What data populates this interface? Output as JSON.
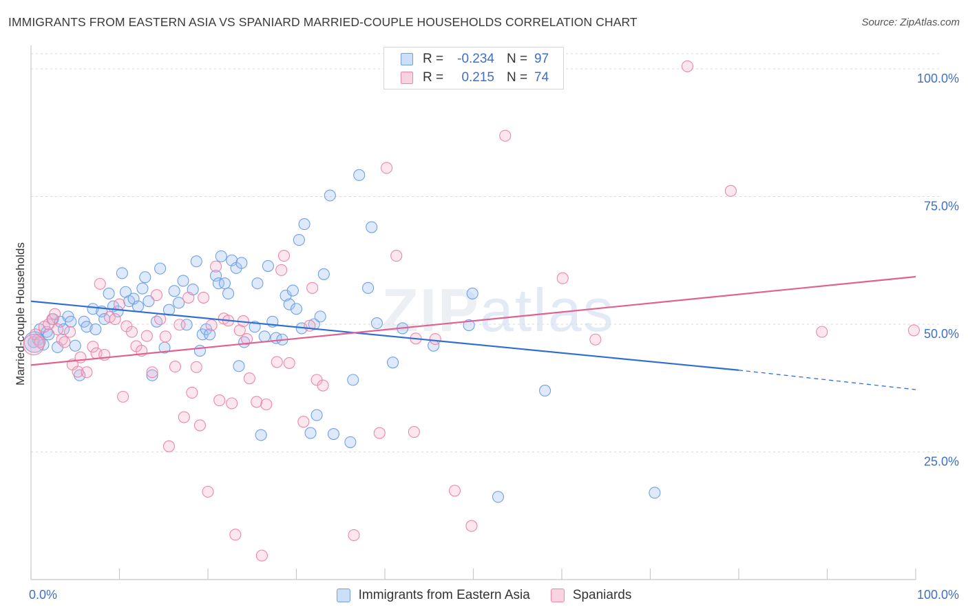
{
  "title": "IMMIGRANTS FROM EASTERN ASIA VS SPANIARD MARRIED-COUPLE HOUSEHOLDS CORRELATION CHART",
  "source": "Source: ZipAtlas.com",
  "watermark": {
    "part1": "ZIP",
    "part2": "atlas"
  },
  "stats": [
    {
      "r_label": "R =",
      "r_value": "-0.234",
      "n_label": "N =",
      "n_value": "97",
      "color": "#6f9fe8"
    },
    {
      "r_label": "R =",
      "r_value": "0.215",
      "n_label": "N =",
      "n_value": "74",
      "color": "#ee86a8"
    }
  ],
  "legend": [
    {
      "label": "Immigrants from Eastern Asia",
      "color": "#6f9fe8"
    },
    {
      "label": "Spaniards",
      "color": "#ee86a8"
    }
  ],
  "chart_data": {
    "type": "scatter",
    "ylabel": "Married-couple Households",
    "xlim": [
      0,
      100
    ],
    "ylim": [
      0,
      100
    ],
    "x_tick_labels": [
      "0.0%",
      "100.0%"
    ],
    "y_ticks": [
      {
        "value": 25,
        "label": "25.0%"
      },
      {
        "value": 50,
        "label": "50.0%"
      },
      {
        "value": 75,
        "label": "75.0%"
      },
      {
        "value": 100,
        "label": "100.0%"
      }
    ],
    "grid": true,
    "legend_position": "bottom",
    "series": [
      {
        "name": "Immigrants from Eastern Asia",
        "color": "#6f9fe8",
        "fill": "rgba(160,195,245,0.35)",
        "trend": {
          "x0": 0,
          "y0": 54.5,
          "x1": 80,
          "y1": 41.0,
          "x_dash_end": 100,
          "y_dash_end": 37.2,
          "color": "#2f6fd1"
        },
        "points": [
          [
            0.3,
            46.5
          ],
          [
            0.8,
            47
          ],
          [
            1,
            49
          ],
          [
            1.4,
            46
          ],
          [
            1.8,
            48.5
          ],
          [
            2,
            48
          ],
          [
            2.5,
            51
          ],
          [
            3,
            45.5
          ],
          [
            3.3,
            50.5
          ],
          [
            3.7,
            49
          ],
          [
            4.2,
            51.5
          ],
          [
            4.5,
            50.5
          ],
          [
            5,
            45.8
          ],
          [
            5.5,
            40
          ],
          [
            6,
            50.5
          ],
          [
            6.3,
            49.5
          ],
          [
            7,
            53
          ],
          [
            7.3,
            49
          ],
          [
            8,
            52.5
          ],
          [
            8.3,
            51
          ],
          [
            8.8,
            56
          ],
          [
            9.3,
            53.5
          ],
          [
            9.8,
            52.5
          ],
          [
            10.3,
            60
          ],
          [
            10.7,
            56.3
          ],
          [
            11.1,
            54.5
          ],
          [
            11.6,
            55
          ],
          [
            12.1,
            53.5
          ],
          [
            12.6,
            57
          ],
          [
            12.9,
            59.2
          ],
          [
            13.3,
            54.5
          ],
          [
            13.7,
            40
          ],
          [
            14.2,
            50.5
          ],
          [
            14.6,
            60.9
          ],
          [
            15.1,
            45.4
          ],
          [
            15.6,
            52.8
          ],
          [
            16.2,
            56.5
          ],
          [
            16.7,
            54.2
          ],
          [
            17.2,
            58.5
          ],
          [
            17.6,
            49.9
          ],
          [
            18.3,
            56.8
          ],
          [
            18.7,
            62.3
          ],
          [
            19.1,
            44.8
          ],
          [
            19.4,
            48
          ],
          [
            19.8,
            49
          ],
          [
            20.2,
            48
          ],
          [
            20.9,
            59.5
          ],
          [
            21.2,
            58
          ],
          [
            21.5,
            63.3
          ],
          [
            21.9,
            58
          ],
          [
            22.3,
            56
          ],
          [
            22.7,
            62.5
          ],
          [
            23.2,
            61
          ],
          [
            23.5,
            41.8
          ],
          [
            23.8,
            62
          ],
          [
            24.1,
            46.5
          ],
          [
            25.3,
            49.5
          ],
          [
            25.6,
            58
          ],
          [
            26,
            28.3
          ],
          [
            26.4,
            47.6
          ],
          [
            26.8,
            61.4
          ],
          [
            27.3,
            50.5
          ],
          [
            27.7,
            47.3
          ],
          [
            28.4,
            47
          ],
          [
            28.8,
            55.6
          ],
          [
            29.2,
            53.9
          ],
          [
            29.6,
            56.6
          ],
          [
            30,
            53
          ],
          [
            30.3,
            66.5
          ],
          [
            30.6,
            49.2
          ],
          [
            30.9,
            69.6
          ],
          [
            31.6,
            28.7
          ],
          [
            32,
            50
          ],
          [
            32.3,
            32.2
          ],
          [
            32.7,
            51.5
          ],
          [
            33.1,
            59.8
          ],
          [
            33.8,
            75.2
          ],
          [
            34.2,
            28.5
          ],
          [
            36.1,
            26.9
          ],
          [
            36.4,
            39.1
          ],
          [
            37.1,
            79.2
          ],
          [
            38.1,
            57.1
          ],
          [
            38.5,
            69
          ],
          [
            39.1,
            50.2
          ],
          [
            40.9,
            42.5
          ],
          [
            42,
            49.2
          ],
          [
            45.5,
            45.8
          ],
          [
            49.5,
            49.8
          ],
          [
            49.9,
            56
          ],
          [
            52.8,
            16.2
          ],
          [
            58.1,
            37
          ],
          [
            70.5,
            17
          ]
        ],
        "big_points": [
          [
            0.4,
            46.5
          ]
        ]
      },
      {
        "name": "Spaniards",
        "color": "#ee86a8",
        "fill": "rgba(245,175,200,0.30)",
        "trend": {
          "x0": 0,
          "y0": 42,
          "x1": 100,
          "y1": 59.3,
          "color": "#e0608e"
        },
        "points": [
          [
            0.5,
            48
          ],
          [
            1,
            46.5
          ],
          [
            1.5,
            49.5
          ],
          [
            2,
            50
          ],
          [
            2.4,
            51
          ],
          [
            2.7,
            52
          ],
          [
            3,
            49
          ],
          [
            3.5,
            47
          ],
          [
            3.8,
            46.5
          ],
          [
            4.4,
            48.5
          ],
          [
            4.7,
            42.1
          ],
          [
            5.3,
            40.7
          ],
          [
            5.6,
            43.5
          ],
          [
            6.3,
            40.6
          ],
          [
            7,
            45.6
          ],
          [
            7.4,
            44.3
          ],
          [
            7.8,
            57.9
          ],
          [
            8.3,
            44
          ],
          [
            8.9,
            51.4
          ],
          [
            9.5,
            51
          ],
          [
            10,
            53.9
          ],
          [
            10.4,
            35.8
          ],
          [
            10.8,
            49.6
          ],
          [
            11.4,
            48.5
          ],
          [
            11.9,
            45.7
          ],
          [
            12.5,
            44.8
          ],
          [
            13.1,
            47.7
          ],
          [
            13.7,
            40.6
          ],
          [
            14.2,
            55.7
          ],
          [
            14.6,
            51
          ],
          [
            15.2,
            47.6
          ],
          [
            15.6,
            26.1
          ],
          [
            16.3,
            41.7
          ],
          [
            16.8,
            49.9
          ],
          [
            17.3,
            31.8
          ],
          [
            17.8,
            55.2
          ],
          [
            18.2,
            36.6
          ],
          [
            18.7,
            41.6
          ],
          [
            19.1,
            30.2
          ],
          [
            19.5,
            55.2
          ],
          [
            20,
            17.2
          ],
          [
            20.4,
            49.8
          ],
          [
            20.9,
            61.3
          ],
          [
            21.3,
            35.1
          ],
          [
            21.8,
            51.1
          ],
          [
            22.3,
            50.7
          ],
          [
            22.7,
            34.5
          ],
          [
            23.1,
            8.8
          ],
          [
            23.6,
            48.8
          ],
          [
            24,
            50.6
          ],
          [
            24.4,
            47.1
          ],
          [
            24.7,
            39.4
          ],
          [
            25.5,
            34.8
          ],
          [
            26.1,
            4.7
          ],
          [
            26.6,
            34.3
          ],
          [
            27.8,
            42.6
          ],
          [
            28.3,
            60.6
          ],
          [
            28.6,
            63.4
          ],
          [
            29.2,
            42.4
          ],
          [
            30.8,
            30.9
          ],
          [
            31.5,
            49.7
          ],
          [
            31.8,
            57.1
          ],
          [
            32.3,
            39.1
          ],
          [
            33,
            38
          ],
          [
            36.5,
            8.7
          ],
          [
            39.4,
            28.7
          ],
          [
            40.2,
            80.6
          ],
          [
            41.3,
            63.4
          ],
          [
            43.3,
            28.9
          ],
          [
            43.5,
            47.2
          ],
          [
            45.7,
            47.1
          ],
          [
            47.9,
            17.4
          ],
          [
            49.8,
            10.5
          ],
          [
            53.6,
            86.9
          ],
          [
            60.1,
            59
          ],
          [
            63.8,
            47
          ],
          [
            74.2,
            100.5
          ],
          [
            79.1,
            76.1
          ],
          [
            89.4,
            48.5
          ],
          [
            99.8,
            48.8
          ]
        ],
        "big_points": [
          [
            0.3,
            46
          ]
        ]
      }
    ]
  }
}
